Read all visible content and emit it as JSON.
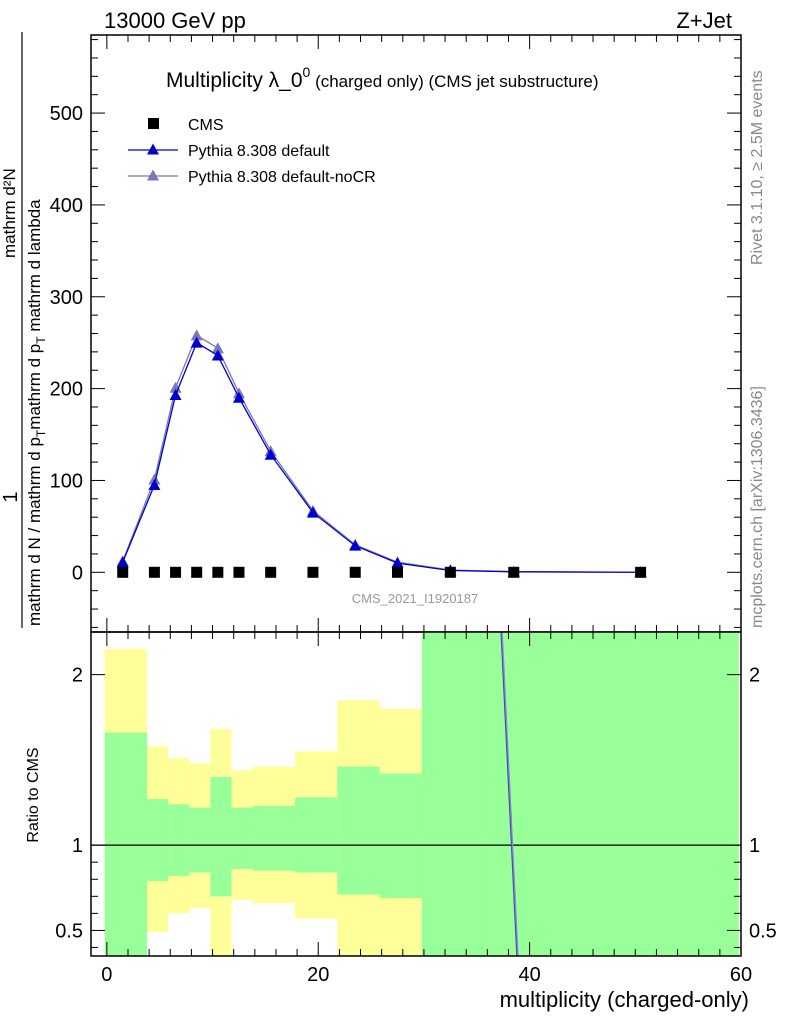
{
  "header": {
    "left": "13000 GeV pp",
    "right": "Z+Jet"
  },
  "side_labels": {
    "rivet": "Rivet 3.1.10, ≥ 2.5M events",
    "mcplots": "mcplots.cern.ch [arXiv:1306.3436]"
  },
  "chart_data": [
    {
      "type": "line",
      "title_main": "Multiplicity λ_0",
      "title_sup": "0",
      "title_rest": " (charged only) (CMS jet substructure)",
      "ylabel_numer": "1",
      "ylabel_denom": "mathrm d N / mathrm d p",
      "ylabel_numer_right": "mathrm d",
      "ylabel_numer_right_sup": "2",
      "ylabel_numer_right_end": "N",
      "ylabel_denom_right": "mathrm d p",
      "ylabel_denom_right_sub": "T",
      "ylabel_denom_right_end": " mathrm d lambda",
      "ylabel_full_top": "mathrm d²N",
      "ylabel_full_bottom_a": "mathrm d N / mathrm d p",
      "ylabel_full_bottom_b": "mathrm d p",
      "ylabel_full_bottom_c": " mathrm d lambda",
      "sub_T": "T",
      "xlim": [
        -1.5,
        60
      ],
      "ylim": [
        -65,
        585
      ],
      "yticks": [
        0,
        100,
        200,
        300,
        400,
        500
      ],
      "watermark": "CMS_2021_I1920187",
      "legend": {
        "position": "top-left",
        "entries": [
          "CMS",
          "Pythia 8.308 default",
          "Pythia 8.308 default-noCR"
        ]
      },
      "series": [
        {
          "name": "CMS",
          "marker": "square",
          "color": "#000000",
          "x": [
            1.5,
            4.5,
            6.5,
            8.5,
            10.5,
            12.5,
            15.5,
            19.5,
            23.5,
            27.5,
            32.5,
            38.5,
            50.5
          ],
          "y": [
            0,
            0,
            0,
            0,
            0,
            0,
            0,
            0,
            0,
            0,
            0,
            0,
            0
          ]
        },
        {
          "name": "Pythia 8.308 default",
          "marker": "triangle",
          "color": "#0000cc",
          "x": [
            1.5,
            4.5,
            6.5,
            8.5,
            10.5,
            12.5,
            15.5,
            19.5,
            23.5,
            27.5,
            32.5,
            38.5,
            50.5
          ],
          "y": [
            11,
            95,
            193,
            250,
            236,
            190,
            128,
            65,
            29,
            10,
            2,
            0.5,
            0
          ]
        },
        {
          "name": "Pythia 8.308 default-noCR",
          "marker": "triangle",
          "color": "#7777bb",
          "x": [
            1.5,
            4.5,
            6.5,
            8.5,
            10.5,
            12.5,
            15.5,
            19.5,
            23.5,
            27.5,
            32.5,
            38.5,
            50.5
          ],
          "y": [
            12,
            101,
            201,
            258,
            244,
            195,
            132,
            67,
            30,
            11,
            2.5,
            0.6,
            0
          ]
        }
      ]
    },
    {
      "type": "area",
      "ylabel": "Ratio to CMS",
      "xlabel": "multiplicity (charged-only)",
      "xlim": [
        -1.5,
        60
      ],
      "ylim": [
        0.35,
        2.25
      ],
      "xticks": [
        0,
        20,
        40,
        60
      ],
      "yticks": [
        0.5,
        1,
        2
      ],
      "ytick_labels": [
        "0.5",
        "1",
        "2"
      ],
      "band_colors": {
        "inner": "#99ff99",
        "outer": "#ffff99"
      },
      "bins": [
        {
          "lo": -0.2,
          "hi": 3.8,
          "y1lo": 0.35,
          "y1hi": 1.66,
          "y2lo": 0.35,
          "y2hi": 2.15
        },
        {
          "lo": 3.8,
          "hi": 5.8,
          "y1lo": 0.79,
          "y1hi": 1.27,
          "y2lo": 0.49,
          "y2hi": 1.58
        },
        {
          "lo": 5.8,
          "hi": 7.8,
          "y1lo": 0.82,
          "y1hi": 1.24,
          "y2lo": 0.6,
          "y2hi": 1.51
        },
        {
          "lo": 7.8,
          "hi": 9.8,
          "y1lo": 0.84,
          "y1hi": 1.22,
          "y2lo": 0.63,
          "y2hi": 1.48
        },
        {
          "lo": 9.8,
          "hi": 11.8,
          "y1lo": 0.7,
          "y1hi": 1.4,
          "y2lo": 0.35,
          "y2hi": 1.68
        },
        {
          "lo": 11.8,
          "hi": 13.8,
          "y1lo": 0.86,
          "y1hi": 1.22,
          "y2lo": 0.68,
          "y2hi": 1.44
        },
        {
          "lo": 13.8,
          "hi": 17.8,
          "y1lo": 0.85,
          "y1hi": 1.23,
          "y2lo": 0.66,
          "y2hi": 1.46
        },
        {
          "lo": 17.8,
          "hi": 21.8,
          "y1lo": 0.84,
          "y1hi": 1.28,
          "y2lo": 0.57,
          "y2hi": 1.55
        },
        {
          "lo": 21.8,
          "hi": 25.8,
          "y1lo": 0.71,
          "y1hi": 1.46,
          "y2lo": 0.35,
          "y2hi": 1.85
        },
        {
          "lo": 25.8,
          "hi": 29.8,
          "y1lo": 0.69,
          "y1hi": 1.42,
          "y2lo": 0.35,
          "y2hi": 1.8
        },
        {
          "lo": 29.8,
          "hi": 35.8,
          "y1lo": 0.35,
          "y1hi": 2.25,
          "y2lo": 0.35,
          "y2hi": 2.25
        },
        {
          "lo": 35.8,
          "hi": 59.8,
          "y1lo": 0.35,
          "y1hi": 2.25,
          "y2lo": 0.35,
          "y2hi": 2.25
        }
      ],
      "ratio_lines": [
        {
          "name": "Pythia 8.308 default",
          "color": "#4444bb",
          "x": [
            37.3,
            38.8
          ],
          "y": [
            2.25,
            0.35
          ]
        },
        {
          "name": "Pythia 8.308 default-noCR",
          "color": "#8888cc",
          "x": [
            37.4,
            38.9
          ],
          "y": [
            2.25,
            0.35
          ]
        }
      ],
      "reference_y": 1
    }
  ]
}
